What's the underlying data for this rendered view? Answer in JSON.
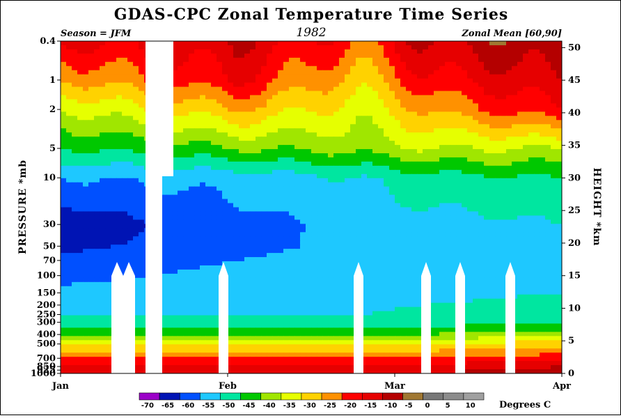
{
  "chart_data": {
    "type": "heatmap",
    "title": "GDAS-CPC Zonal Temperature Time Series",
    "subtitle_left": "Season = JFM",
    "subtitle_center": "1982",
    "subtitle_right": "Zonal Mean [60,90]",
    "xlabel": "",
    "ylabel_left": "PRESSURE *mb",
    "ylabel_right": "HEIGHT *km",
    "x_ticks": [
      "Jan",
      "Feb",
      "Mar",
      "Apr"
    ],
    "pressure_ticks": [
      {
        "p": 0.4,
        "label": "0.4"
      },
      {
        "p": 1,
        "label": "1"
      },
      {
        "p": 2,
        "label": "2"
      },
      {
        "p": 5,
        "label": "5"
      },
      {
        "p": 10,
        "label": "10"
      },
      {
        "p": 30,
        "label": "30"
      },
      {
        "p": 50,
        "label": "50"
      },
      {
        "p": 70,
        "label": "70"
      },
      {
        "p": 100,
        "label": "100"
      },
      {
        "p": 150,
        "label": "150"
      },
      {
        "p": 200,
        "label": "200"
      },
      {
        "p": 250,
        "label": "250"
      },
      {
        "p": 300,
        "label": "300"
      },
      {
        "p": 400,
        "label": "400"
      },
      {
        "p": 500,
        "label": "500"
      },
      {
        "p": 700,
        "label": "700"
      },
      {
        "p": 850,
        "label": "850"
      },
      {
        "p": 925,
        "label": "925"
      },
      {
        "p": 1000,
        "label": "1000"
      }
    ],
    "height_ticks": [
      0,
      5,
      10,
      15,
      20,
      25,
      30,
      35,
      40,
      45,
      50
    ],
    "colorbar": {
      "unit": "Degrees C",
      "levels": [
        "-70",
        "-65",
        "-60",
        "-55",
        "-50",
        "-45",
        "-40",
        "-35",
        "-30",
        "-25",
        "-20",
        "-15",
        "-10",
        "-5",
        "0",
        "5",
        "10"
      ],
      "colors": [
        "#9b00c8",
        "#0014b4",
        "#0050ff",
        "#1ec8ff",
        "#00e6a0",
        "#00c800",
        "#a0e600",
        "#e6ff00",
        "#ffd200",
        "#ff9100",
        "#ff0000",
        "#e60000",
        "#b40000",
        "#a07832",
        "#787878",
        "#8c8c8c",
        "#a0a0a0"
      ]
    },
    "contour_levels": [
      -70,
      -65,
      -60,
      -55,
      -50,
      -45,
      -40,
      -35,
      -30,
      -25,
      -20,
      -15,
      -10,
      -5,
      0,
      5
    ],
    "series_profile": {
      "description_note": "",
      "pressure_levels": [
        0.4,
        1,
        2,
        5,
        10,
        30,
        50,
        70,
        100,
        150,
        200,
        250,
        300,
        400,
        500,
        700,
        850,
        1000
      ],
      "jan_early": [
        -20,
        -30,
        -40,
        -50,
        -60,
        -68,
        -66,
        -64,
        -62,
        -58,
        -56,
        -55,
        -54,
        -45,
        -35,
        -25,
        -20,
        -18
      ],
      "feb_start": [
        -15,
        -20,
        -30,
        -45,
        -58,
        -62,
        -62,
        -60,
        -58,
        -57,
        -56,
        -55,
        -54,
        -45,
        -35,
        -25,
        -20,
        -18
      ],
      "feb_late": [
        -25,
        -33,
        -38,
        -43,
        -55,
        -58,
        -58,
        -57,
        -57,
        -57,
        -56,
        -55,
        -54,
        -45,
        -35,
        -25,
        -20,
        -18
      ],
      "mar_mid": [
        -15,
        -22,
        -30,
        -40,
        -52,
        -57,
        -57,
        -56,
        -56,
        -56,
        -55,
        -54,
        -53,
        -45,
        -35,
        -25,
        -18,
        -15
      ],
      "apr": [
        -10,
        -15,
        -20,
        -40,
        -50,
        -55,
        -55,
        -55,
        -55,
        -55,
        -54,
        -53,
        -50,
        -42,
        -32,
        -22,
        -15,
        -12
      ]
    }
  }
}
